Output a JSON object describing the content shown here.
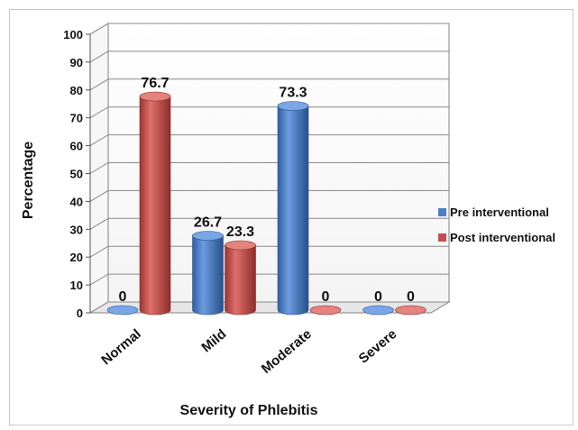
{
  "chart_data": {
    "type": "bar",
    "title": "",
    "xlabel": "Severity of  Phlebitis",
    "ylabel": "Percentage",
    "ylim": [
      0,
      100
    ],
    "yticks": [
      0,
      10,
      20,
      30,
      40,
      50,
      60,
      70,
      80,
      90,
      100
    ],
    "categories": [
      "Normal",
      "Mild",
      "Moderate",
      "Severe"
    ],
    "series": [
      {
        "name": "Pre interventional",
        "color": "#4a7fc6",
        "values": [
          0,
          26.7,
          73.3,
          0
        ],
        "labels": [
          "0",
          "26.7",
          "73.3",
          "0"
        ]
      },
      {
        "name": "Post interventional",
        "color": "#c0504d",
        "values": [
          76.7,
          23.3,
          0,
          0
        ],
        "labels": [
          "76.7",
          "23.3",
          "0",
          "0"
        ]
      }
    ],
    "grid": true,
    "legend": "right",
    "style": "3d-cylinder"
  }
}
